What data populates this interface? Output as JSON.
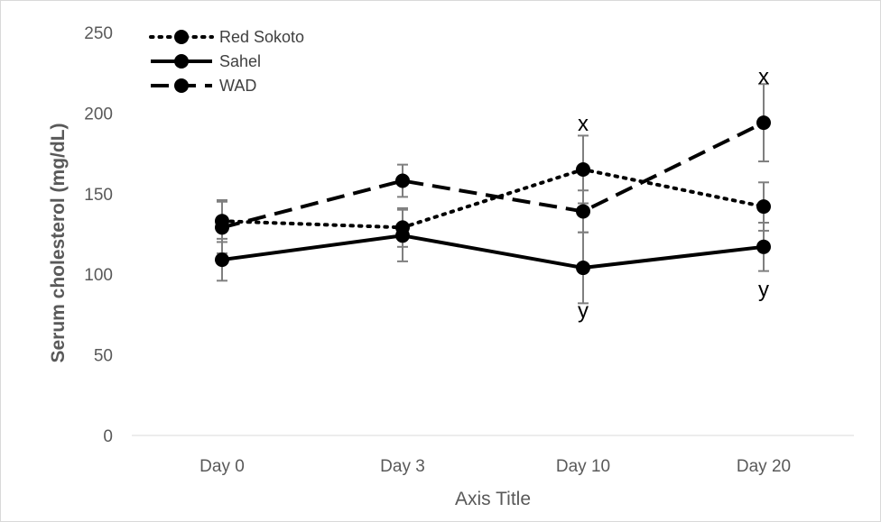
{
  "chart_data": {
    "type": "line",
    "title": "",
    "xlabel": "Axis Title",
    "ylabel": "Serum cholesterol (mg/dL)",
    "ylim": [
      0,
      250
    ],
    "yticks": [
      0,
      50,
      100,
      150,
      200,
      250
    ],
    "categories": [
      "Day 0",
      "Day 3",
      "Day 10",
      "Day 20"
    ],
    "grid": false,
    "legend_position": "top-left",
    "series": [
      {
        "name": "Red Sokoto",
        "line_style": "dotted",
        "color": "#000000",
        "values": [
          133,
          129,
          165,
          142
        ],
        "error": [
          13,
          12,
          21,
          15
        ]
      },
      {
        "name": "Sahel",
        "line_style": "solid",
        "color": "#000000",
        "values": [
          109,
          124,
          104,
          117
        ],
        "error": [
          13,
          16,
          22,
          15
        ]
      },
      {
        "name": "WAD",
        "line_style": "dashed",
        "color": "#000000",
        "values": [
          129,
          158,
          139,
          194
        ],
        "error": [
          16,
          10,
          13,
          24
        ]
      }
    ],
    "annotations": [
      {
        "text": "x",
        "category": "Day 10",
        "value": 189
      },
      {
        "text": "y",
        "category": "Day 10",
        "value": 73
      },
      {
        "text": "x",
        "category": "Day 20",
        "value": 218
      },
      {
        "text": "y",
        "category": "Day 20",
        "value": 86
      }
    ]
  }
}
